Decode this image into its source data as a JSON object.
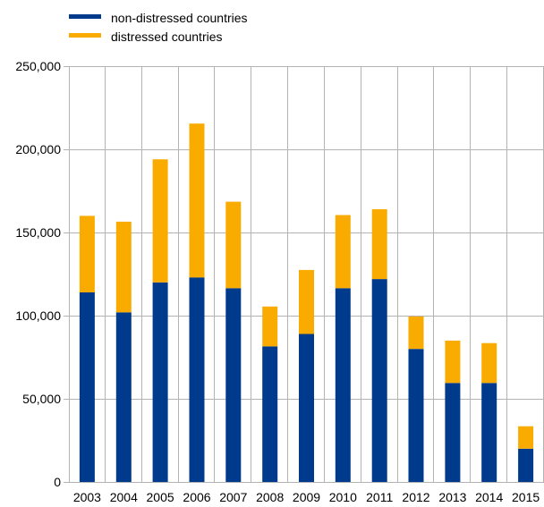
{
  "chart_data": {
    "type": "bar",
    "stacked": true,
    "title": "",
    "xlabel": "",
    "ylabel": "",
    "categories": [
      "2003",
      "2004",
      "2005",
      "2006",
      "2007",
      "2008",
      "2009",
      "2010",
      "2011",
      "2012",
      "2013",
      "2014",
      "2015"
    ],
    "series": [
      {
        "name": "non-distressed countries",
        "color": "#003a8c",
        "values": [
          114000,
          102000,
          120000,
          123000,
          116500,
          81500,
          89000,
          116500,
          122000,
          80000,
          59500,
          59500,
          20000
        ]
      },
      {
        "name": "distressed countries",
        "color": "#f9ab00",
        "values": [
          46000,
          54500,
          74000,
          92500,
          52000,
          24000,
          38500,
          44000,
          42000,
          19500,
          25500,
          24000,
          13500
        ]
      }
    ],
    "ylim": [
      0,
      250000
    ],
    "yticks": [
      0,
      50000,
      100000,
      150000,
      200000,
      250000
    ],
    "ytick_labels": [
      "0",
      "50,000",
      "100,000",
      "150,000",
      "200,000",
      "250,000"
    ],
    "grid": "vertical and horizontal",
    "legend_position": "top-left"
  }
}
